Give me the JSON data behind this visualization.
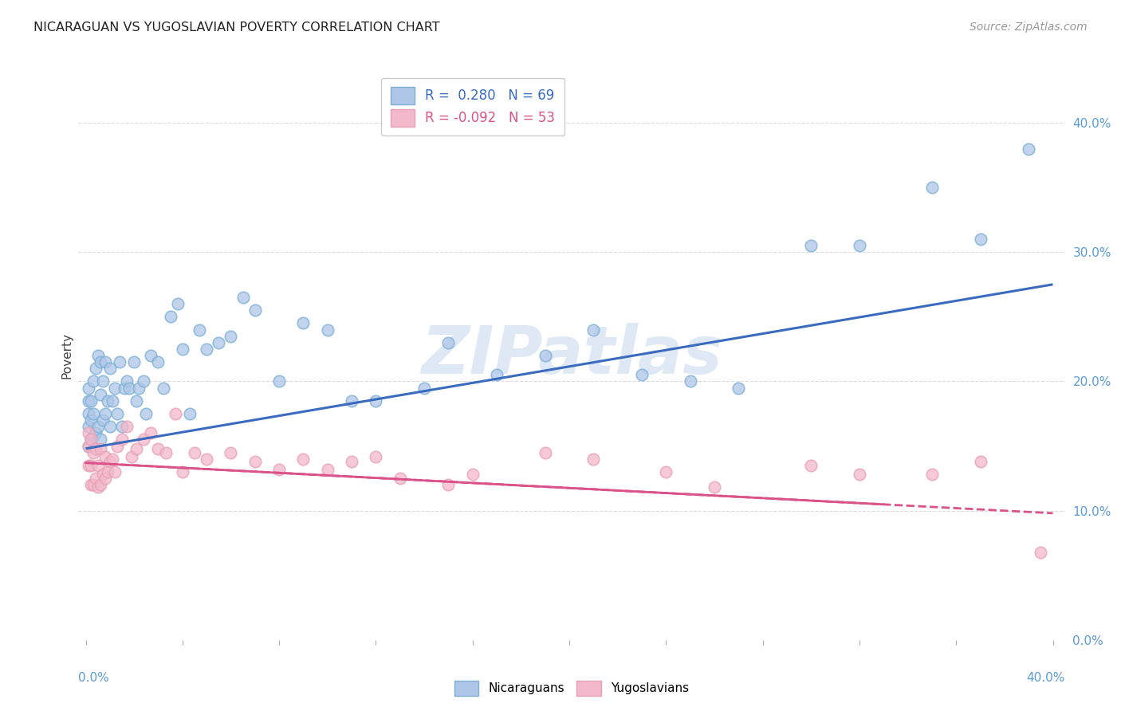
{
  "title": "NICARAGUAN VS YUGOSLAVIAN POVERTY CORRELATION CHART",
  "source": "Source: ZipAtlas.com",
  "ylabel": "Poverty",
  "watermark": "ZIPatlas",
  "legend_nicaraguans_label": "Nicaraguans",
  "legend_yugoslavians_label": "Yugoslavians",
  "nicaraguan_R": 0.28,
  "nicaraguan_N": 69,
  "yugoslavian_R": -0.092,
  "yugoslavian_N": 53,
  "blue_color": "#7bafd4",
  "pink_color": "#e8a0b4",
  "blue_line_color": "#3a6bbf",
  "pink_line_color": "#d9538a",
  "blue_scatter_fill": "#aec6e8",
  "pink_scatter_fill": "#f2b8cb",
  "background_color": "#ffffff",
  "grid_color": "#cccccc",
  "title_color": "#222222",
  "source_color": "#999999",
  "right_axis_color": "#5b9bd5",
  "ylim_min": 0.0,
  "ylim_max": 0.44,
  "xlim_min": -0.003,
  "xlim_max": 0.405,
  "nic_line_x0": 0.0,
  "nic_line_x1": 0.4,
  "nic_line_y0": 0.148,
  "nic_line_y1": 0.275,
  "yug_line_x0": 0.0,
  "yug_line_x1": 0.4,
  "yug_line_y0": 0.137,
  "yug_line_y1": 0.098,
  "nicaraguan_x": [
    0.001,
    0.001,
    0.001,
    0.001,
    0.001,
    0.002,
    0.002,
    0.002,
    0.003,
    0.003,
    0.003,
    0.004,
    0.004,
    0.005,
    0.005,
    0.006,
    0.006,
    0.006,
    0.007,
    0.007,
    0.008,
    0.008,
    0.009,
    0.01,
    0.01,
    0.011,
    0.012,
    0.013,
    0.014,
    0.015,
    0.016,
    0.017,
    0.018,
    0.02,
    0.021,
    0.022,
    0.024,
    0.025,
    0.027,
    0.03,
    0.032,
    0.035,
    0.038,
    0.04,
    0.043,
    0.047,
    0.05,
    0.055,
    0.06,
    0.065,
    0.07,
    0.08,
    0.09,
    0.1,
    0.11,
    0.12,
    0.14,
    0.15,
    0.17,
    0.19,
    0.21,
    0.23,
    0.25,
    0.27,
    0.3,
    0.32,
    0.35,
    0.37,
    0.39
  ],
  "nicaraguan_y": [
    0.15,
    0.165,
    0.175,
    0.185,
    0.195,
    0.155,
    0.17,
    0.185,
    0.158,
    0.175,
    0.2,
    0.16,
    0.21,
    0.165,
    0.22,
    0.155,
    0.19,
    0.215,
    0.17,
    0.2,
    0.175,
    0.215,
    0.185,
    0.165,
    0.21,
    0.185,
    0.195,
    0.175,
    0.215,
    0.165,
    0.195,
    0.2,
    0.195,
    0.215,
    0.185,
    0.195,
    0.2,
    0.175,
    0.22,
    0.215,
    0.195,
    0.25,
    0.26,
    0.225,
    0.175,
    0.24,
    0.225,
    0.23,
    0.235,
    0.265,
    0.255,
    0.2,
    0.245,
    0.24,
    0.185,
    0.185,
    0.195,
    0.23,
    0.205,
    0.22,
    0.24,
    0.205,
    0.2,
    0.195,
    0.305,
    0.305,
    0.35,
    0.31,
    0.38
  ],
  "yugoslavian_x": [
    0.001,
    0.001,
    0.001,
    0.002,
    0.002,
    0.002,
    0.003,
    0.003,
    0.004,
    0.004,
    0.005,
    0.005,
    0.006,
    0.006,
    0.007,
    0.008,
    0.008,
    0.009,
    0.01,
    0.011,
    0.012,
    0.013,
    0.015,
    0.017,
    0.019,
    0.021,
    0.024,
    0.027,
    0.03,
    0.033,
    0.037,
    0.04,
    0.045,
    0.05,
    0.06,
    0.07,
    0.08,
    0.09,
    0.1,
    0.11,
    0.12,
    0.13,
    0.15,
    0.16,
    0.19,
    0.21,
    0.24,
    0.26,
    0.3,
    0.32,
    0.35,
    0.37,
    0.395
  ],
  "yugoslavian_y": [
    0.135,
    0.15,
    0.16,
    0.12,
    0.135,
    0.155,
    0.12,
    0.145,
    0.125,
    0.148,
    0.118,
    0.135,
    0.12,
    0.148,
    0.128,
    0.125,
    0.142,
    0.13,
    0.138,
    0.14,
    0.13,
    0.15,
    0.155,
    0.165,
    0.142,
    0.148,
    0.155,
    0.16,
    0.148,
    0.145,
    0.175,
    0.13,
    0.145,
    0.14,
    0.145,
    0.138,
    0.132,
    0.14,
    0.132,
    0.138,
    0.142,
    0.125,
    0.12,
    0.128,
    0.145,
    0.14,
    0.13,
    0.118,
    0.135,
    0.128,
    0.128,
    0.138,
    0.068
  ]
}
